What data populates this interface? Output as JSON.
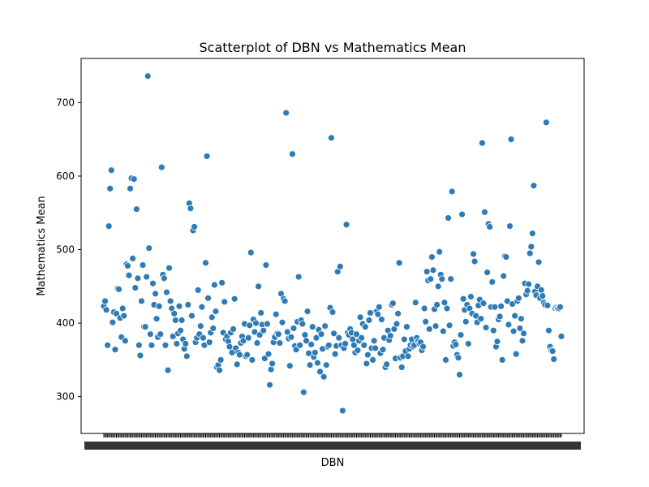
{
  "chart_data": {
    "type": "scatter",
    "title": "Scatterplot of DBN vs Mathematics Mean",
    "xlabel": "DBN",
    "ylabel": "Mathematics Mean",
    "yticks": [
      300,
      400,
      500,
      600,
      700
    ],
    "ylim": [
      250,
      760
    ],
    "grid": false,
    "series_color": "#2f7bb6",
    "y": [
      423,
      430,
      418,
      370,
      532,
      583,
      608,
      401,
      415,
      364,
      413,
      447,
      446,
      407,
      381,
      420,
      410,
      376,
      480,
      478,
      465,
      583,
      597,
      488,
      596,
      448,
      555,
      461,
      370,
      356,
      430,
      479,
      395,
      395,
      463,
      736,
      502,
      385,
      370,
      454,
      425,
      440,
      406,
      381,
      423,
      385,
      612,
      466,
      461,
      370,
      442,
      336,
      475,
      430,
      420,
      382,
      413,
      404,
      372,
      386,
      423,
      390,
      404,
      378,
      365,
      372,
      355,
      425,
      563,
      556,
      410,
      526,
      531,
      374,
      380,
      445,
      385,
      396,
      422,
      380,
      370,
      482,
      627,
      434,
      374,
      387,
      408,
      393,
      452,
      416,
      340,
      343,
      336,
      350,
      455,
      387,
      429,
      378,
      382,
      375,
      368,
      387,
      360,
      392,
      433,
      366,
      344,
      360,
      357,
      373,
      382,
      376,
      399,
      355,
      357,
      380,
      397,
      496,
      350,
      405,
      388,
      400,
      373,
      450,
      384,
      414,
      398,
      390,
      352,
      479,
      399,
      358,
      316,
      337,
      345,
      374,
      381,
      412,
      386,
      385,
      373,
      440,
      401,
      433,
      430,
      686,
      388,
      379,
      342,
      381,
      630,
      393,
      369,
      364,
      402,
      463,
      370,
      404,
      399,
      306,
      384,
      376,
      416,
      359,
      343,
      371,
      395,
      354,
      360,
      380,
      346,
      391,
      334,
      385,
      365,
      327,
      396,
      343,
      368,
      370,
      421,
      652,
      415,
      386,
      358,
      369,
      470,
      380,
      477,
      370,
      281,
      366,
      372,
      534,
      387,
      384,
      392,
      387,
      378,
      370,
      360,
      385,
      363,
      376,
      408,
      380,
      399,
      370,
      395,
      345,
      357,
      404,
      414,
      366,
      350,
      376,
      366,
      416,
      412,
      422,
      359,
      405,
      364,
      380,
      340,
      344,
      390,
      377,
      383,
      425,
      427,
      392,
      352,
      399,
      413,
      482,
      353,
      340,
      355,
      378,
      362,
      395,
      355,
      365,
      370,
      378,
      368,
      370,
      428,
      380,
      375,
      372,
      374,
      363,
      368,
      420,
      402,
      470,
      458,
      392,
      460,
      490,
      472,
      419,
      396,
      425,
      450,
      497,
      466,
      460,
      389,
      428,
      350,
      420,
      543,
      397,
      460,
      579,
      369,
      374,
      371,
      357,
      353,
      330,
      384,
      548,
      433,
      418,
      402,
      425,
      372,
      420,
      436,
      413,
      494,
      484,
      410,
      401,
      424,
      432,
      406,
      645,
      427,
      551,
      394,
      469,
      535,
      531,
      422,
      456,
      390,
      422,
      368,
      375,
      405,
      409,
      423,
      350,
      464,
      491,
      490,
      430,
      398,
      532,
      650,
      426,
      389,
      410,
      358,
      430,
      434,
      393,
      406,
      376,
      386,
      454,
      439,
      444,
      453,
      495,
      504,
      522,
      587,
      443,
      438,
      450,
      483,
      434,
      445,
      437,
      428,
      425,
      673,
      424,
      390,
      368,
      363,
      362,
      351,
      420,
      421,
      420,
      420,
      422,
      382
    ]
  }
}
